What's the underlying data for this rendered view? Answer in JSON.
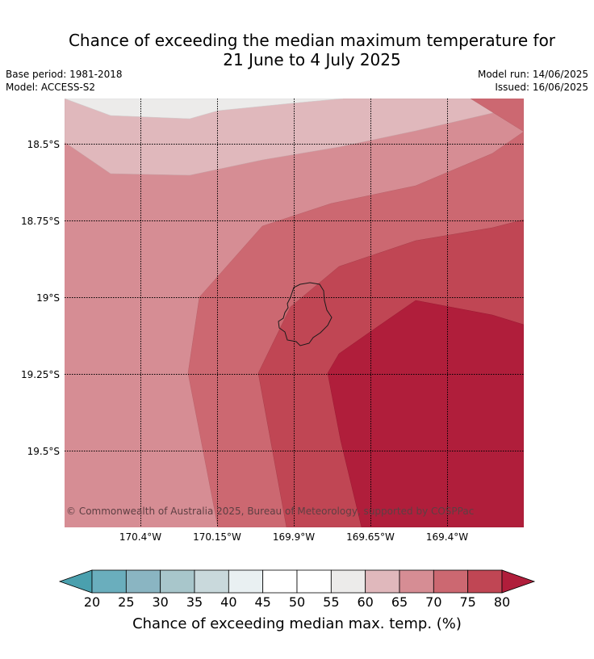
{
  "title_line1": "Chance of exceeding the median maximum temperature for",
  "title_line2": "21 June to 4 July 2025",
  "base_period": "Base period: 1981-2018",
  "model": "Model: ACCESS-S2",
  "model_run": "Model run: 14/06/2025",
  "issued": "Issued: 16/06/2025",
  "copyright": "© Commonwealth of Australia 2025, Bureau of Meteorology, supported by COSPPac",
  "lat_labels": [
    "18.5°S",
    "18.75°S",
    "19°S",
    "19.25°S",
    "19.5°S"
  ],
  "lon_labels": [
    "170.4°W",
    "170.15°W",
    "169.9°W",
    "169.65°W",
    "169.4°W"
  ],
  "colorbar": {
    "title": "Chance of exceeding median max. temp. (%)",
    "ticks": [
      "20",
      "25",
      "30",
      "35",
      "40",
      "45",
      "50",
      "55",
      "60",
      "65",
      "70",
      "75",
      "80"
    ],
    "colors": [
      "#4aa0ae",
      "#6aaebd",
      "#8ab5c2",
      "#a8c6cb",
      "#c9d9dc",
      "#e9f0f2",
      "#ffffff",
      "#ffffff",
      "#ecebea",
      "#e0b8bc",
      "#d68d94",
      "#cc6871",
      "#c04654",
      "#b01e3b"
    ]
  }
}
